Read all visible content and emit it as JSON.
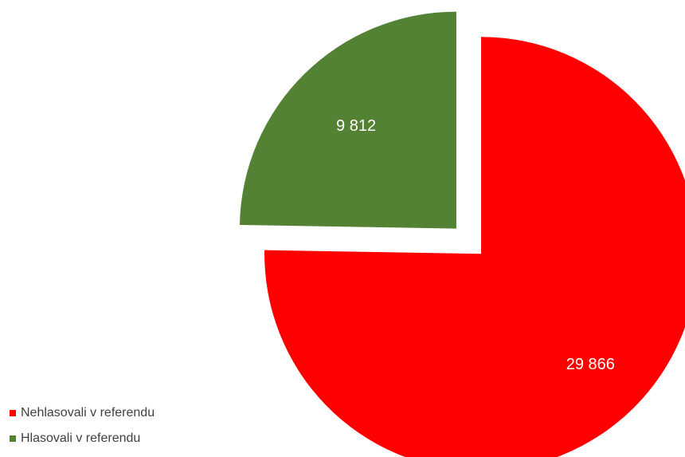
{
  "chart_data": {
    "type": "pie",
    "title": "",
    "legend_position": "bottom-left",
    "exploded": true,
    "slices": [
      {
        "label": "Nehlasovali v referendu",
        "value": 29866,
        "value_label": "29 866",
        "color": "#FF0000"
      },
      {
        "label": "Hlasovali v referendu",
        "value": 9812,
        "value_label": "9 812",
        "color": "#548235"
      }
    ]
  }
}
